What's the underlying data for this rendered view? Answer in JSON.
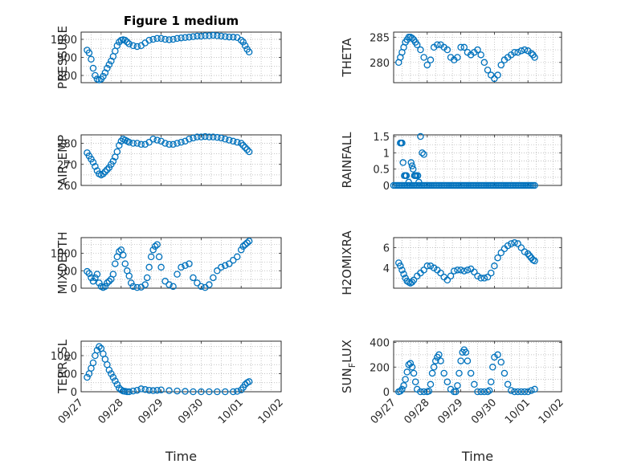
{
  "chart_data": [
    {
      "id": "pressure",
      "type": "scatter",
      "title": "Figure 1 medium",
      "ylabel": "PRESSURE",
      "ylabel_sub": "",
      "ylabel_rest": "",
      "xlim": [
        0,
        5
      ],
      "ylim": [
        760,
        1040
      ],
      "yticks": [
        800,
        900,
        1000
      ],
      "xticklabels": [
        "09/27",
        "09/28",
        "09/29",
        "09/30",
        "10/01",
        "10/02"
      ],
      "show_xticklabels": false,
      "xlabel": "",
      "x": [
        0.15,
        0.2,
        0.25,
        0.3,
        0.35,
        0.4,
        0.45,
        0.5,
        0.55,
        0.6,
        0.65,
        0.7,
        0.75,
        0.8,
        0.85,
        0.9,
        0.95,
        1.0,
        1.05,
        1.1,
        1.15,
        1.2,
        1.3,
        1.4,
        1.5,
        1.6,
        1.7,
        1.8,
        1.9,
        2.0,
        2.1,
        2.2,
        2.3,
        2.4,
        2.5,
        2.6,
        2.7,
        2.8,
        2.9,
        3.0,
        3.1,
        3.2,
        3.3,
        3.4,
        3.5,
        3.6,
        3.7,
        3.8,
        3.9,
        4.0,
        4.05,
        4.1,
        4.15,
        4.2
      ],
      "y": [
        940,
        925,
        890,
        840,
        800,
        780,
        775,
        780,
        795,
        815,
        840,
        860,
        880,
        905,
        935,
        965,
        985,
        995,
        998,
        995,
        985,
        975,
        965,
        960,
        965,
        980,
        995,
        1000,
        1005,
        1005,
        1000,
        998,
        1000,
        1005,
        1008,
        1010,
        1012,
        1015,
        1018,
        1018,
        1020,
        1020,
        1022,
        1020,
        1018,
        1015,
        1013,
        1012,
        1010,
        995,
        985,
        965,
        945,
        930
      ]
    },
    {
      "id": "theta",
      "type": "scatter",
      "title": "",
      "ylabel": "THETA",
      "ylabel_sub": "",
      "ylabel_rest": "",
      "xlim": [
        0,
        5
      ],
      "ylim": [
        276,
        286
      ],
      "yticks": [
        280,
        285
      ],
      "xticklabels": [
        "09/27",
        "09/28",
        "09/29",
        "09/30",
        "10/01",
        "10/02"
      ],
      "show_xticklabels": false,
      "xlabel": "",
      "x": [
        0.15,
        0.2,
        0.25,
        0.3,
        0.35,
        0.4,
        0.45,
        0.5,
        0.55,
        0.6,
        0.65,
        0.7,
        0.8,
        0.9,
        1.0,
        1.1,
        1.2,
        1.3,
        1.4,
        1.5,
        1.6,
        1.7,
        1.8,
        1.9,
        2.0,
        2.1,
        2.2,
        2.3,
        2.4,
        2.5,
        2.6,
        2.7,
        2.8,
        2.9,
        3.0,
        3.1,
        3.2,
        3.3,
        3.4,
        3.5,
        3.6,
        3.7,
        3.8,
        3.9,
        4.0,
        4.1,
        4.15,
        4.2
      ],
      "y": [
        280,
        281,
        282,
        283,
        284,
        284.5,
        285,
        285,
        284.8,
        284.5,
        284,
        283.5,
        282.5,
        281,
        279.5,
        280.5,
        283,
        283.5,
        283.5,
        283,
        282.5,
        281,
        280.5,
        281,
        283,
        283,
        282,
        281.5,
        282,
        282.5,
        281.5,
        280,
        278.5,
        277.5,
        276.8,
        277.5,
        279.5,
        280.5,
        281,
        281.5,
        282,
        282,
        282.3,
        282.5,
        282.3,
        281.8,
        281.5,
        281
      ]
    },
    {
      "id": "air_temp",
      "type": "scatter",
      "title": "",
      "ylabel": "AIR",
      "ylabel_sub": "T",
      "ylabel_rest": "EMP",
      "xlim": [
        0,
        5
      ],
      "ylim": [
        260,
        284
      ],
      "yticks": [
        260,
        270,
        280
      ],
      "xticklabels": [
        "09/27",
        "09/28",
        "09/29",
        "09/30",
        "10/01",
        "10/02"
      ],
      "show_xticklabels": false,
      "xlabel": "",
      "x": [
        0.15,
        0.2,
        0.25,
        0.3,
        0.35,
        0.4,
        0.45,
        0.5,
        0.55,
        0.6,
        0.65,
        0.7,
        0.75,
        0.8,
        0.85,
        0.9,
        0.95,
        1.0,
        1.05,
        1.1,
        1.15,
        1.2,
        1.3,
        1.4,
        1.5,
        1.6,
        1.7,
        1.8,
        1.9,
        2.0,
        2.1,
        2.2,
        2.3,
        2.4,
        2.5,
        2.6,
        2.7,
        2.8,
        2.9,
        3.0,
        3.1,
        3.2,
        3.3,
        3.4,
        3.5,
        3.6,
        3.7,
        3.8,
        3.9,
        4.0,
        4.05,
        4.1,
        4.15,
        4.2
      ],
      "y": [
        275.5,
        274,
        272.5,
        271,
        269,
        267,
        265.5,
        265,
        265.5,
        266.5,
        267.5,
        268.5,
        270,
        271.5,
        273.5,
        276,
        279,
        281,
        282,
        281.5,
        281,
        280.5,
        280,
        280,
        279.5,
        279.5,
        280.5,
        282,
        281.5,
        281,
        280,
        279.5,
        279.5,
        280,
        280.5,
        281,
        282,
        282.5,
        283,
        283,
        283.2,
        283,
        283,
        282.8,
        282.5,
        282,
        281.5,
        281,
        280.5,
        280,
        279,
        278,
        277,
        276
      ]
    },
    {
      "id": "rainfall",
      "type": "scatter",
      "title": "",
      "ylabel": "RAINFALL",
      "ylabel_sub": "",
      "ylabel_rest": "",
      "xlim": [
        0,
        5
      ],
      "ylim": [
        0,
        1.55
      ],
      "yticks": [
        0,
        0.5,
        1,
        1.5
      ],
      "xticklabels": [
        "09/27",
        "09/28",
        "09/29",
        "09/30",
        "10/01",
        "10/02"
      ],
      "show_xticklabels": false,
      "xlabel": "",
      "x": [
        0.0,
        0.05,
        0.1,
        0.15,
        0.2,
        0.25,
        0.3,
        0.35,
        0.4,
        0.45,
        0.5,
        0.55,
        0.6,
        0.65,
        0.7,
        0.75,
        0.8,
        0.85,
        0.9,
        0.95,
        1.0,
        1.05,
        1.1,
        1.15,
        1.2,
        1.25,
        1.3,
        1.35,
        1.4,
        1.45,
        1.5,
        1.55,
        1.6,
        1.65,
        1.7,
        1.75,
        1.8,
        1.85,
        1.9,
        1.95,
        2.0,
        2.05,
        2.1,
        2.15,
        2.2,
        2.25,
        2.3,
        2.35,
        2.4,
        2.45,
        2.5,
        2.55,
        2.6,
        2.65,
        2.7,
        2.75,
        2.8,
        2.85,
        2.9,
        2.95,
        3.0,
        3.05,
        3.1,
        3.15,
        3.2,
        3.25,
        3.3,
        3.35,
        3.4,
        3.45,
        3.5,
        3.55,
        3.6,
        3.65,
        3.7,
        3.75,
        3.8,
        3.85,
        3.9,
        3.95,
        4.0,
        4.05,
        4.1,
        4.15,
        4.2,
        0.2,
        0.22,
        0.25,
        0.28,
        0.32,
        0.35,
        0.38,
        0.45,
        0.52,
        0.55,
        0.58,
        0.62,
        0.65,
        0.68,
        0.72,
        0.75,
        0.8,
        0.85,
        0.9
      ],
      "y": [
        0,
        0,
        0,
        0,
        0,
        0,
        0,
        0,
        0,
        0,
        0,
        0,
        0,
        0,
        0,
        0,
        0,
        0,
        0,
        0,
        0,
        0,
        0,
        0,
        0,
        0,
        0,
        0,
        0,
        0,
        0,
        0,
        0,
        0,
        0,
        0,
        0,
        0,
        0,
        0,
        0,
        0,
        0,
        0,
        0,
        0,
        0,
        0,
        0,
        0,
        0,
        0,
        0,
        0,
        0,
        0,
        0,
        0,
        0,
        0,
        0,
        0,
        0,
        0,
        0,
        0,
        0,
        0,
        0,
        0,
        0,
        0,
        0,
        0,
        0,
        0,
        0,
        0,
        0,
        0,
        0,
        0,
        0,
        0,
        0,
        1.3,
        1.3,
        1.3,
        0.7,
        0.3,
        0.3,
        0.3,
        0.1,
        0.7,
        0.6,
        0.5,
        0.3,
        0.3,
        0.3,
        0.3,
        0.1,
        1.5,
        1.0,
        0.95
      ]
    },
    {
      "id": "mixdepth",
      "type": "scatter",
      "title": "",
      "ylabel": "MIXDEPTH",
      "ylabel_sub": "",
      "ylabel_rest": "",
      "xlim": [
        0,
        5
      ],
      "ylim": [
        0,
        1450
      ],
      "yticks": [
        0,
        500,
        1000
      ],
      "xticklabels": [
        "09/27",
        "09/28",
        "09/29",
        "09/30",
        "10/01",
        "10/02"
      ],
      "show_xticklabels": false,
      "xlabel": "",
      "x": [
        0.15,
        0.2,
        0.25,
        0.3,
        0.35,
        0.4,
        0.45,
        0.5,
        0.55,
        0.6,
        0.65,
        0.7,
        0.75,
        0.8,
        0.85,
        0.9,
        0.95,
        1.0,
        1.05,
        1.1,
        1.15,
        1.2,
        1.25,
        1.3,
        1.4,
        1.5,
        1.6,
        1.65,
        1.7,
        1.75,
        1.8,
        1.85,
        1.9,
        1.95,
        2.0,
        2.1,
        2.2,
        2.3,
        2.4,
        2.5,
        2.6,
        2.7,
        2.8,
        2.9,
        3.0,
        3.1,
        3.2,
        3.3,
        3.4,
        3.5,
        3.6,
        3.7,
        3.8,
        3.9,
        4.0,
        4.05,
        4.1,
        4.15,
        4.2
      ],
      "y": [
        480,
        420,
        300,
        200,
        300,
        400,
        150,
        50,
        20,
        50,
        150,
        200,
        260,
        400,
        700,
        900,
        1050,
        1100,
        950,
        700,
        500,
        350,
        150,
        50,
        20,
        30,
        100,
        300,
        600,
        900,
        1100,
        1200,
        1250,
        900,
        600,
        200,
        100,
        50,
        400,
        600,
        650,
        700,
        300,
        150,
        50,
        20,
        100,
        300,
        500,
        600,
        650,
        700,
        800,
        900,
        1100,
        1200,
        1250,
        1300,
        1350
      ]
    },
    {
      "id": "h2omixra",
      "type": "scatter",
      "title": "",
      "ylabel": "H2OMIXRA",
      "ylabel_sub": "",
      "ylabel_rest": "",
      "xlim": [
        0,
        5
      ],
      "ylim": [
        2,
        7
      ],
      "yticks": [
        4,
        6
      ],
      "xticklabels": [
        "09/27",
        "09/28",
        "09/29",
        "09/30",
        "10/01",
        "10/02"
      ],
      "show_xticklabels": false,
      "xlabel": "",
      "x": [
        0.15,
        0.2,
        0.25,
        0.3,
        0.35,
        0.4,
        0.45,
        0.5,
        0.55,
        0.6,
        0.7,
        0.8,
        0.9,
        1.0,
        1.1,
        1.2,
        1.3,
        1.4,
        1.5,
        1.6,
        1.7,
        1.8,
        1.9,
        2.0,
        2.1,
        2.2,
        2.3,
        2.4,
        2.5,
        2.6,
        2.7,
        2.8,
        2.9,
        3.0,
        3.1,
        3.2,
        3.3,
        3.4,
        3.5,
        3.6,
        3.7,
        3.8,
        3.9,
        4.0,
        4.05,
        4.1,
        4.15,
        4.2
      ],
      "y": [
        4.5,
        4.2,
        3.8,
        3.4,
        3.0,
        2.7,
        2.6,
        2.5,
        2.6,
        2.8,
        3.2,
        3.5,
        3.8,
        4.2,
        4.2,
        4.0,
        3.8,
        3.5,
        3.1,
        2.8,
        3.2,
        3.7,
        3.8,
        3.8,
        3.7,
        3.8,
        3.9,
        3.6,
        3.2,
        3.0,
        3.0,
        3.1,
        3.5,
        4.2,
        5.0,
        5.5,
        5.9,
        6.2,
        6.4,
        6.5,
        6.4,
        6.0,
        5.6,
        5.4,
        5.2,
        5.0,
        4.8,
        4.7
      ]
    },
    {
      "id": "terr_msl",
      "type": "scatter",
      "title": "",
      "ylabel": "TERR",
      "ylabel_sub": "M",
      "ylabel_rest": "SL",
      "xlim": [
        0,
        5
      ],
      "ylim": [
        0,
        1400
      ],
      "yticks": [
        0,
        500,
        1000
      ],
      "xticklabels": [
        "09/27",
        "09/28",
        "09/29",
        "09/30",
        "10/01",
        "10/02"
      ],
      "show_xticklabels": true,
      "xlabel": "Time",
      "x": [
        0.15,
        0.2,
        0.25,
        0.3,
        0.35,
        0.4,
        0.45,
        0.5,
        0.55,
        0.6,
        0.65,
        0.7,
        0.75,
        0.8,
        0.85,
        0.9,
        0.95,
        1.0,
        1.05,
        1.1,
        1.15,
        1.2,
        1.3,
        1.4,
        1.5,
        1.6,
        1.7,
        1.8,
        1.9,
        2.0,
        2.2,
        2.4,
        2.6,
        2.8,
        3.0,
        3.2,
        3.4,
        3.6,
        3.8,
        3.9,
        4.0,
        4.05,
        4.1,
        4.15,
        4.2
      ],
      "y": [
        400,
        500,
        650,
        800,
        1000,
        1150,
        1250,
        1200,
        1050,
        900,
        750,
        600,
        500,
        400,
        300,
        200,
        100,
        50,
        20,
        10,
        0,
        0,
        20,
        40,
        80,
        60,
        40,
        30,
        40,
        50,
        30,
        20,
        10,
        0,
        0,
        0,
        0,
        0,
        0,
        10,
        50,
        120,
        200,
        250,
        280
      ]
    },
    {
      "id": "sun_flux",
      "type": "scatter",
      "title": "",
      "ylabel": "SUN",
      "ylabel_sub": "F",
      "ylabel_rest": "LUX",
      "xlim": [
        0,
        5
      ],
      "ylim": [
        0,
        410
      ],
      "yticks": [
        0,
        200,
        400
      ],
      "xticklabels": [
        "09/27",
        "09/28",
        "09/29",
        "09/30",
        "10/01",
        "10/02"
      ],
      "show_xticklabels": true,
      "xlabel": "Time",
      "x": [
        0.15,
        0.2,
        0.25,
        0.3,
        0.35,
        0.4,
        0.45,
        0.5,
        0.55,
        0.6,
        0.65,
        0.7,
        0.8,
        0.9,
        1.0,
        1.05,
        1.1,
        1.15,
        1.2,
        1.25,
        1.3,
        1.35,
        1.4,
        1.5,
        1.6,
        1.7,
        1.8,
        1.85,
        1.9,
        1.95,
        2.0,
        2.05,
        2.1,
        2.15,
        2.2,
        2.3,
        2.4,
        2.5,
        2.6,
        2.7,
        2.8,
        2.85,
        2.9,
        2.95,
        3.0,
        3.1,
        3.2,
        3.3,
        3.4,
        3.5,
        3.6,
        3.7,
        3.8,
        3.9,
        4.0,
        4.1,
        4.2
      ],
      "y": [
        0,
        5,
        20,
        50,
        100,
        160,
        220,
        230,
        200,
        150,
        80,
        20,
        0,
        0,
        0,
        5,
        60,
        150,
        200,
        250,
        280,
        300,
        250,
        150,
        80,
        20,
        0,
        0,
        50,
        150,
        250,
        320,
        340,
        320,
        250,
        150,
        60,
        0,
        0,
        0,
        0,
        10,
        80,
        200,
        280,
        300,
        240,
        150,
        60,
        10,
        0,
        0,
        0,
        0,
        0,
        10,
        20
      ]
    }
  ]
}
